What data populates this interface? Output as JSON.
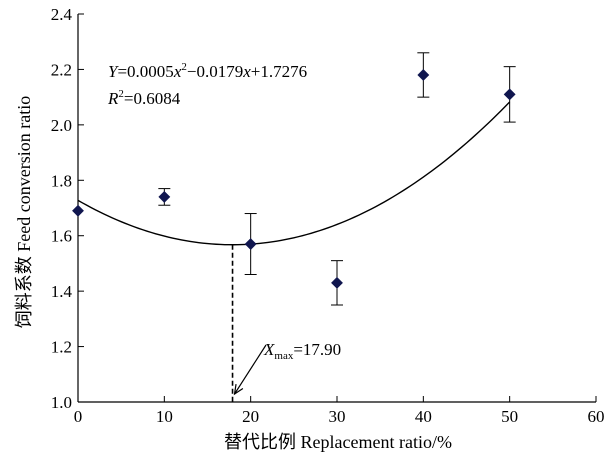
{
  "chart_data": {
    "type": "scatter",
    "xlabel": "替代比例 Replacement ratio/%",
    "ylabel": "饲料系数 Feed conversion ratio",
    "xlim": [
      0,
      60
    ],
    "ylim": [
      1.0,
      2.4
    ],
    "x_ticks": [
      "0",
      "10",
      "20",
      "30",
      "40",
      "50",
      "60"
    ],
    "y_ticks": [
      "1.0",
      "1.2",
      "1.4",
      "1.6",
      "1.8",
      "2.0",
      "2.2",
      "2.4"
    ],
    "grid": false,
    "points": [
      {
        "x": 0,
        "y": 1.69,
        "err": 0
      },
      {
        "x": 10,
        "y": 1.74,
        "err": 0.03
      },
      {
        "x": 20,
        "y": 1.57,
        "err": 0.11
      },
      {
        "x": 30,
        "y": 1.43,
        "err": 0.08
      },
      {
        "x": 40,
        "y": 2.18,
        "err": 0.08
      },
      {
        "x": 50,
        "y": 2.11,
        "err": 0.1
      }
    ],
    "fit": {
      "a": 0.0005,
      "b": -0.0179,
      "c": 1.7276,
      "x_range": [
        0,
        50
      ]
    },
    "equation": {
      "y": "Y",
      "rhs_1": "=0.0005",
      "x1": "x",
      "exp1": "2",
      "rhs_2": "−0.0179",
      "x2": "x",
      "rhs_3": "+1.7276"
    },
    "r2": {
      "r": "R",
      "exp": "2",
      "rhs": "=0.6084"
    },
    "annotation": {
      "x": 17.9,
      "label_x": "X",
      "label_sub": "max",
      "label_value": "=17.90"
    }
  }
}
